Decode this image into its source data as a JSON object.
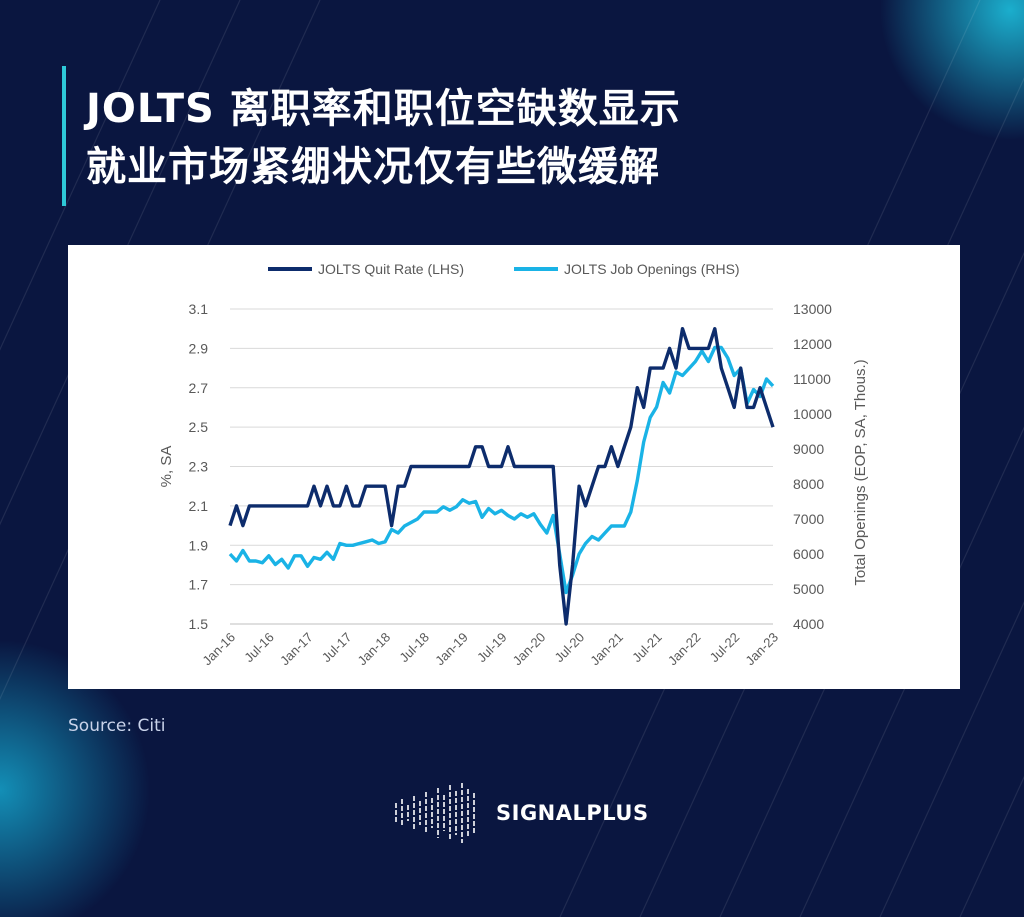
{
  "header": {
    "title_line1": "JOLTS 离职率和职位空缺数显示",
    "title_line2": "就业市场紧绷状况仅有些微缓解"
  },
  "source": "Source:  Citi",
  "brand": {
    "name": "SIGNALPLUS",
    "icon": "waveform-logo-icon"
  },
  "colors": {
    "background": "#0a1640",
    "accent": "#2ec8d8",
    "quit_rate": "#0d2c6c",
    "job_openings": "#1ab3e6"
  },
  "chart_data": {
    "type": "line",
    "x": [
      "Jan-16",
      "Feb-16",
      "Mar-16",
      "Apr-16",
      "May-16",
      "Jun-16",
      "Jul-16",
      "Aug-16",
      "Sep-16",
      "Oct-16",
      "Nov-16",
      "Dec-16",
      "Jan-17",
      "Feb-17",
      "Mar-17",
      "Apr-17",
      "May-17",
      "Jun-17",
      "Jul-17",
      "Aug-17",
      "Sep-17",
      "Oct-17",
      "Nov-17",
      "Dec-17",
      "Jan-18",
      "Feb-18",
      "Mar-18",
      "Apr-18",
      "May-18",
      "Jun-18",
      "Jul-18",
      "Aug-18",
      "Sep-18",
      "Oct-18",
      "Nov-18",
      "Dec-18",
      "Jan-19",
      "Feb-19",
      "Mar-19",
      "Apr-19",
      "May-19",
      "Jun-19",
      "Jul-19",
      "Aug-19",
      "Sep-19",
      "Oct-19",
      "Nov-19",
      "Dec-19",
      "Jan-20",
      "Feb-20",
      "Mar-20",
      "Apr-20",
      "May-20",
      "Jun-20",
      "Jul-20",
      "Aug-20",
      "Sep-20",
      "Oct-20",
      "Nov-20",
      "Dec-20",
      "Jan-21",
      "Feb-21",
      "Mar-21",
      "Apr-21",
      "May-21",
      "Jun-21",
      "Jul-21",
      "Aug-21",
      "Sep-21",
      "Oct-21",
      "Nov-21",
      "Dec-21",
      "Jan-22",
      "Feb-22",
      "Mar-22",
      "Apr-22",
      "May-22",
      "Jun-22",
      "Jul-22",
      "Aug-22",
      "Sep-22",
      "Oct-22",
      "Nov-22",
      "Dec-22",
      "Jan-23"
    ],
    "tick_labels": [
      "Jan-16",
      "Jul-16",
      "Jan-17",
      "Jul-17",
      "Jan-18",
      "Jul-18",
      "Jan-19",
      "Jul-19",
      "Jan-20",
      "Jul-20",
      "Jan-21",
      "Jul-21",
      "Jan-22",
      "Jul-22",
      "Jan-23"
    ],
    "series": [
      {
        "name": "JOLTS Quit Rate (LHS)",
        "axis": "left",
        "values": [
          2.0,
          2.1,
          2.0,
          2.1,
          2.1,
          2.1,
          2.1,
          2.1,
          2.1,
          2.1,
          2.1,
          2.1,
          2.1,
          2.2,
          2.1,
          2.2,
          2.1,
          2.1,
          2.2,
          2.1,
          2.1,
          2.2,
          2.2,
          2.2,
          2.2,
          2.0,
          2.2,
          2.2,
          2.3,
          2.3,
          2.3,
          2.3,
          2.3,
          2.3,
          2.3,
          2.3,
          2.3,
          2.3,
          2.4,
          2.4,
          2.3,
          2.3,
          2.3,
          2.4,
          2.3,
          2.3,
          2.3,
          2.3,
          2.3,
          2.3,
          2.3,
          1.8,
          1.5,
          1.8,
          2.2,
          2.1,
          2.2,
          2.3,
          2.3,
          2.4,
          2.3,
          2.4,
          2.5,
          2.7,
          2.6,
          2.8,
          2.8,
          2.8,
          2.9,
          2.8,
          3.0,
          2.9,
          2.9,
          2.9,
          2.9,
          3.0,
          2.8,
          2.7,
          2.6,
          2.8,
          2.6,
          2.6,
          2.7,
          2.6,
          2.5
        ]
      },
      {
        "name": "JOLTS Job Openings (RHS)",
        "axis": "right",
        "values": [
          6000,
          5800,
          6100,
          5800,
          5800,
          5750,
          5950,
          5700,
          5850,
          5600,
          5950,
          5950,
          5650,
          5900,
          5850,
          6050,
          5850,
          6300,
          6250,
          6250,
          6300,
          6350,
          6400,
          6300,
          6350,
          6700,
          6600,
          6800,
          6900,
          7000,
          7200,
          7200,
          7200,
          7350,
          7250,
          7350,
          7550,
          7450,
          7500,
          7050,
          7300,
          7150,
          7250,
          7100,
          7000,
          7150,
          7050,
          7150,
          6850,
          6600,
          7100,
          6000,
          4900,
          5400,
          6000,
          6300,
          6500,
          6400,
          6600,
          6800,
          6800,
          6800,
          7200,
          8100,
          9200,
          9900,
          10200,
          10900,
          10600,
          11200,
          11100,
          11300,
          11500,
          11800,
          11500,
          11900,
          11900,
          11600,
          11100,
          11300,
          10300,
          10700,
          10500,
          11000,
          10800
        ]
      }
    ],
    "y_left": {
      "label": "%, SA",
      "min": 1.5,
      "max": 3.1,
      "ticks": [
        "1.5",
        "1.7",
        "1.9",
        "2.1",
        "2.3",
        "2.5",
        "2.7",
        "2.9",
        "3.1"
      ]
    },
    "y_right": {
      "label": "Total Openings (EOP, SA, Thous.)",
      "min": 4000,
      "max": 13000,
      "ticks": [
        "4000",
        "5000",
        "6000",
        "7000",
        "8000",
        "9000",
        "10000",
        "11000",
        "12000",
        "13000"
      ]
    },
    "grid": true,
    "legend_position": "top"
  }
}
